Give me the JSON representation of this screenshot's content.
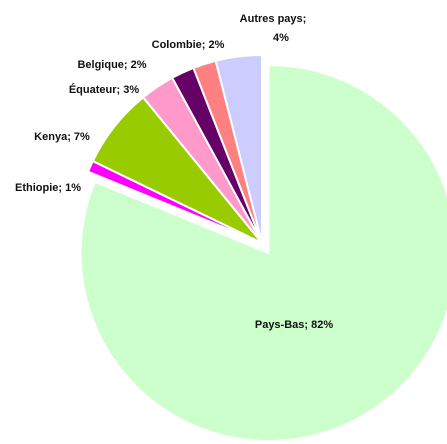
{
  "chart_data": {
    "type": "pie",
    "slices": [
      {
        "label": "Pays-Bas",
        "value": 82,
        "label_text": "Pays-Bas; 82%",
        "color": "#ccffcc"
      },
      {
        "label": "Ethiopie",
        "value": 1,
        "label_text": "Ethiopie; 1%",
        "color": "#ff00ff"
      },
      {
        "label": "Kenya",
        "value": 7,
        "label_text": "Kenya; 7%",
        "color": "#99cc00"
      },
      {
        "label": "Équateur",
        "value": 3,
        "label_text": "Équateur; 3%",
        "color": "#ff99cc"
      },
      {
        "label": "Belgique",
        "value": 2,
        "label_text": "Belgique; 2%",
        "color": "#660066"
      },
      {
        "label": "Colombie",
        "value": 2,
        "label_text": "Colombie; 2%",
        "color": "#ff8080"
      },
      {
        "label": "Autres pays",
        "value": 4,
        "label_text_lines": [
          "Autres pays;",
          "4%"
        ],
        "color": "#ccccff"
      }
    ],
    "exploded_slice": "Pays-Bas",
    "legend": "none"
  }
}
